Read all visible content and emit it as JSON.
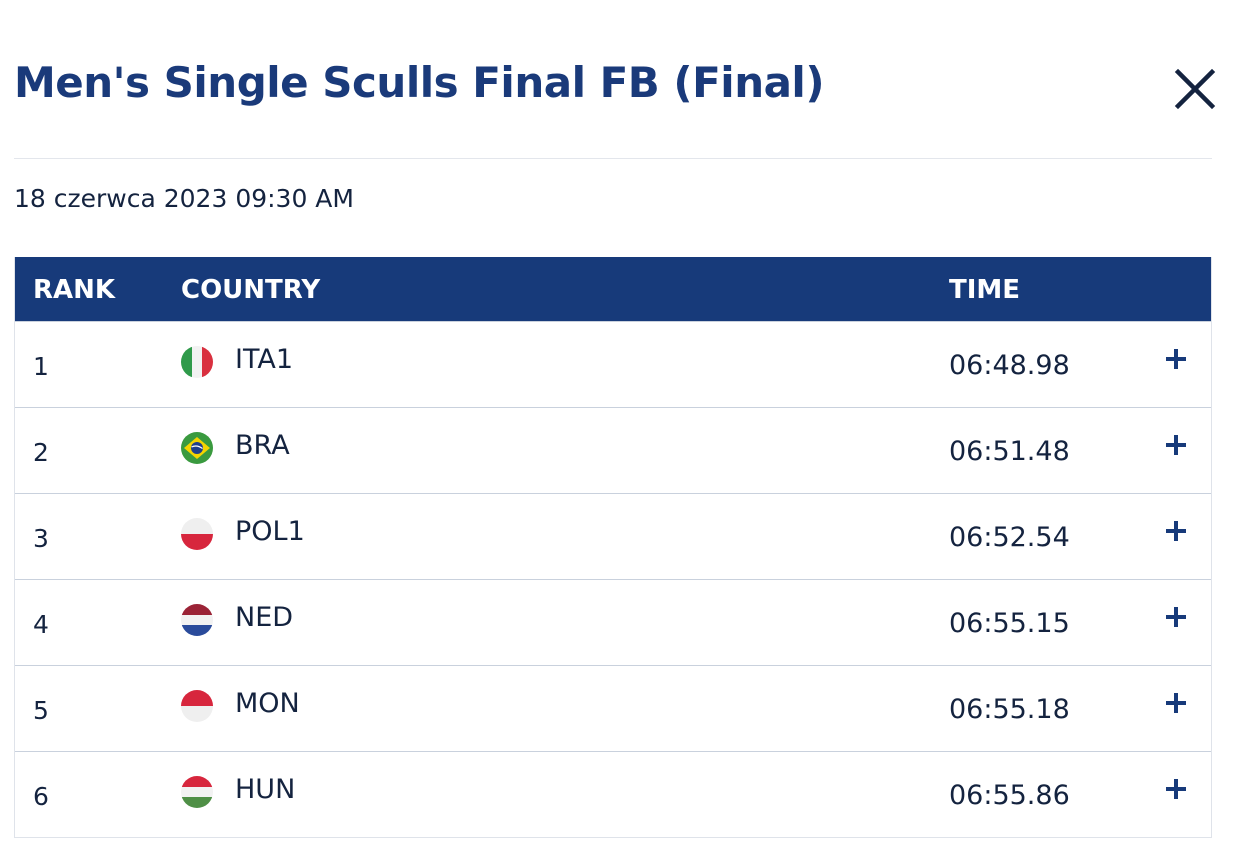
{
  "title": "Men's Single Sculls Final FB (Final)",
  "date": "18 czerwca 2023 09:30 AM",
  "table": {
    "headers": {
      "rank": "RANK",
      "country": "COUNTRY",
      "time": "TIME"
    },
    "rows": [
      {
        "rank": "1",
        "country": "ITA1",
        "time": "06:48.98",
        "flag": "italy-flag-icon"
      },
      {
        "rank": "2",
        "country": "BRA",
        "time": "06:51.48",
        "flag": "brazil-flag-icon"
      },
      {
        "rank": "3",
        "country": "POL1",
        "time": "06:52.54",
        "flag": "poland-flag-icon"
      },
      {
        "rank": "4",
        "country": "NED",
        "time": "06:55.15",
        "flag": "netherlands-flag-icon"
      },
      {
        "rank": "5",
        "country": "MON",
        "time": "06:55.18",
        "flag": "monaco-flag-icon"
      },
      {
        "rank": "6",
        "country": "HUN",
        "time": "06:55.86",
        "flag": "hungary-flag-icon"
      }
    ]
  },
  "colors": {
    "header_bg": "#173a7a",
    "title": "#1a3a7a",
    "text": "#14233f"
  }
}
